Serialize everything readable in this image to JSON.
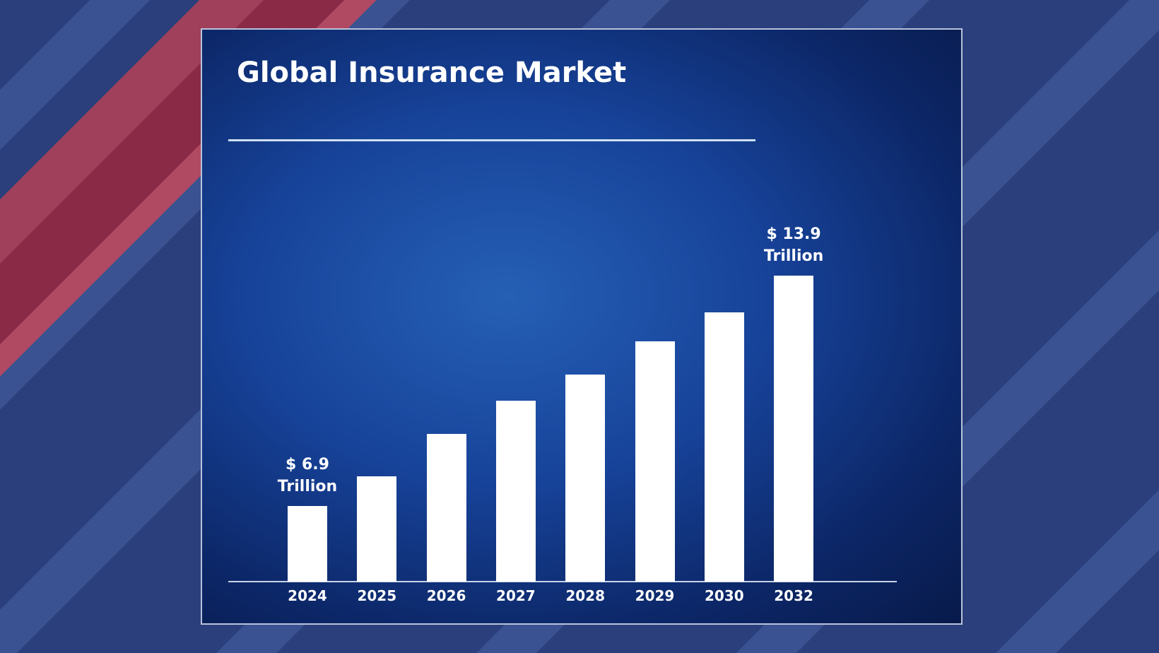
{
  "chart_data": {
    "type": "bar",
    "title": "Global Insurance Market",
    "categories": [
      "2024",
      "2025",
      "2026",
      "2027",
      "2028",
      "2029",
      "2030",
      "2032"
    ],
    "values": [
      6.9,
      7.8,
      9.1,
      10.1,
      10.9,
      11.9,
      12.8,
      13.9
    ],
    "value_labels": [
      "$ 6.9 Trillion",
      null,
      null,
      null,
      null,
      null,
      null,
      "$ 13.9 Trillion"
    ],
    "color": "#ffffff",
    "ylim": [
      4.6,
      15.5
    ]
  }
}
